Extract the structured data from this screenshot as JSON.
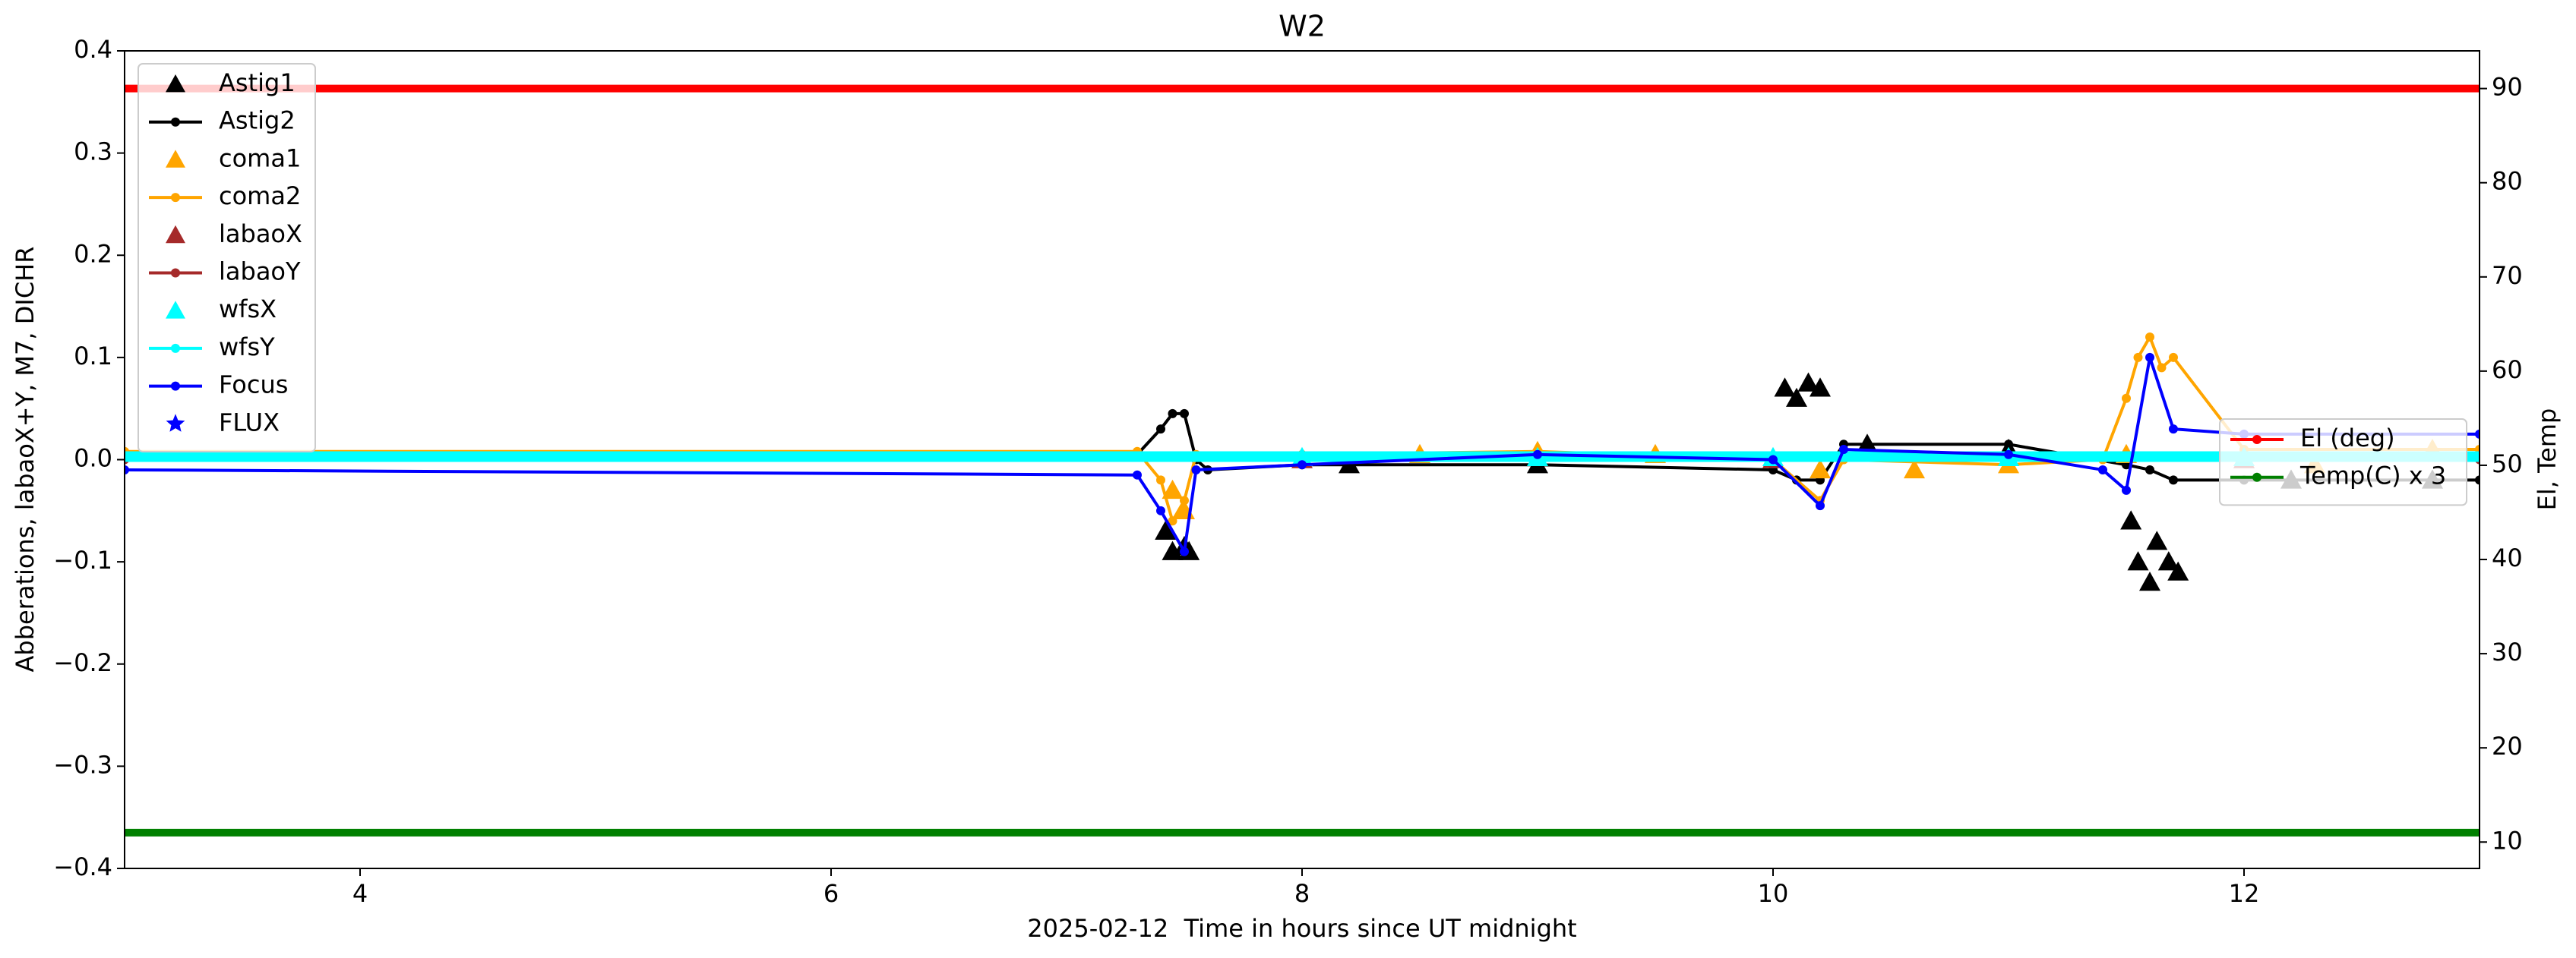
{
  "chart_data": {
    "type": "line",
    "title": "W2",
    "x_label": "2025-02-12  Time in hours since UT midnight",
    "y_label": "Abberations, labaoX+Y, M7, DICHR",
    "y2_label": "El, Temp",
    "xlim": [
      3,
      13
    ],
    "xticks": [
      4,
      6,
      8,
      10,
      12
    ],
    "ylim": [
      -0.4,
      0.4
    ],
    "yticks": [
      {
        "value": -0.4,
        "label": "−0.4"
      },
      {
        "value": -0.3,
        "label": "−0.3"
      },
      {
        "value": -0.2,
        "label": "−0.2"
      },
      {
        "value": -0.1,
        "label": "−0.1"
      },
      {
        "value": 0,
        "label": "0.0"
      },
      0.1,
      0.2,
      0.3,
      0.4
    ],
    "y2lim": [
      7.2,
      94
    ],
    "y2ticks": [
      10,
      20,
      30,
      40,
      50,
      60,
      70,
      80,
      90
    ],
    "legend": "upper left",
    "legend2": "center right",
    "series": [
      {
        "name": "Astig1",
        "color": "#000000",
        "marker": "triangle",
        "line": false,
        "x": [
          7.42,
          7.45,
          7.5,
          7.52,
          8.2,
          9.0,
          10.05,
          10.1,
          10.15,
          10.2,
          10.4,
          11.0,
          11.52,
          11.55,
          11.6,
          11.63,
          11.68,
          11.72,
          12.2,
          12.8
        ],
        "values": [
          -0.07,
          -0.09,
          -0.085,
          -0.09,
          -0.005,
          -0.005,
          0.07,
          0.06,
          0.075,
          0.07,
          0.015,
          0.01,
          -0.06,
          -0.1,
          -0.12,
          -0.08,
          -0.1,
          -0.11,
          -0.02,
          -0.02
        ]
      },
      {
        "name": "Astig2",
        "color": "#000000",
        "marker": "circle",
        "line": true,
        "x": [
          3,
          7.3,
          7.4,
          7.45,
          7.5,
          7.55,
          7.6,
          8,
          9,
          10,
          10.1,
          10.2,
          10.3,
          11,
          11.5,
          11.6,
          11.7,
          12,
          13
        ],
        "values": [
          0.005,
          0.005,
          0.03,
          0.045,
          0.045,
          0,
          -0.01,
          -0.005,
          -0.005,
          -0.01,
          -0.02,
          -0.02,
          0.015,
          0.015,
          -0.005,
          -0.01,
          -0.02,
          -0.02,
          -0.02
        ]
      },
      {
        "name": "coma1",
        "color": "#ffa500",
        "marker": "triangle",
        "line": false,
        "x": [
          7.45,
          7.5,
          8.5,
          9.0,
          9.5,
          10.2,
          10.6,
          11.0,
          11.5,
          12.3,
          12.8
        ],
        "values": [
          -0.03,
          -0.05,
          0.005,
          0.008,
          0.005,
          -0.01,
          -0.01,
          -0.005,
          0.005,
          -0.005,
          0.01
        ]
      },
      {
        "name": "coma2",
        "color": "#ffa500",
        "marker": "circle",
        "line": true,
        "x": [
          3,
          7.3,
          7.4,
          7.45,
          7.5,
          7.55,
          8,
          9,
          10,
          10.2,
          10.3,
          11,
          11.4,
          11.5,
          11.55,
          11.6,
          11.65,
          11.7,
          12,
          13
        ],
        "values": [
          0.008,
          0.008,
          -0.02,
          -0.06,
          -0.04,
          0.005,
          0.005,
          0.008,
          0,
          -0.04,
          0,
          -0.005,
          0,
          0.06,
          0.1,
          0.12,
          0.09,
          0.1,
          0.01,
          0.01
        ]
      },
      {
        "name": "labaoX",
        "color": "#a52a2a",
        "marker": "triangle",
        "line": false,
        "x": [
          8.0,
          10.0,
          12.0
        ],
        "values": [
          0,
          0,
          0
        ]
      },
      {
        "name": "labaoY",
        "color": "#a52a2a",
        "marker": "circle",
        "line": true,
        "x": [
          3,
          13
        ],
        "values": [
          0,
          0
        ]
      },
      {
        "name": "wfsX",
        "color": "#00ffff",
        "marker": "triangle",
        "line": false,
        "x": [
          8.0,
          9.0,
          10.0,
          11.0,
          12.0
        ],
        "values": [
          0.002,
          0.002,
          0.002,
          0.002,
          0.002
        ]
      },
      {
        "name": "wfsY",
        "color": "#00ffff",
        "marker": "circle",
        "line": true,
        "x": [
          3,
          13
        ],
        "values": [
          0.003,
          0.003
        ]
      },
      {
        "name": "Focus",
        "color": "#0000ff",
        "marker": "circle",
        "line": true,
        "x": [
          3,
          7.3,
          7.4,
          7.5,
          7.55,
          8,
          9,
          10,
          10.2,
          10.3,
          11,
          11.4,
          11.5,
          11.6,
          11.7,
          12,
          13
        ],
        "values": [
          -0.01,
          -0.015,
          -0.05,
          -0.09,
          -0.01,
          -0.005,
          0.005,
          0,
          -0.045,
          0.01,
          0.005,
          -0.01,
          -0.03,
          0.1,
          0.03,
          0.025,
          0.025
        ]
      },
      {
        "name": "FLUX",
        "color": "#0000ff",
        "marker": "star",
        "line": false,
        "x": [],
        "values": []
      },
      {
        "name": "El (deg)",
        "color": "#ff0000",
        "marker": "circle",
        "line": true,
        "axis": "y2",
        "x": [
          3,
          13
        ],
        "values": [
          90,
          90
        ]
      },
      {
        "name": "Temp(C) x 3",
        "color": "#008000",
        "marker": "circle",
        "line": true,
        "axis": "y2",
        "x": [
          3,
          13
        ],
        "values": [
          11,
          11
        ]
      }
    ]
  }
}
